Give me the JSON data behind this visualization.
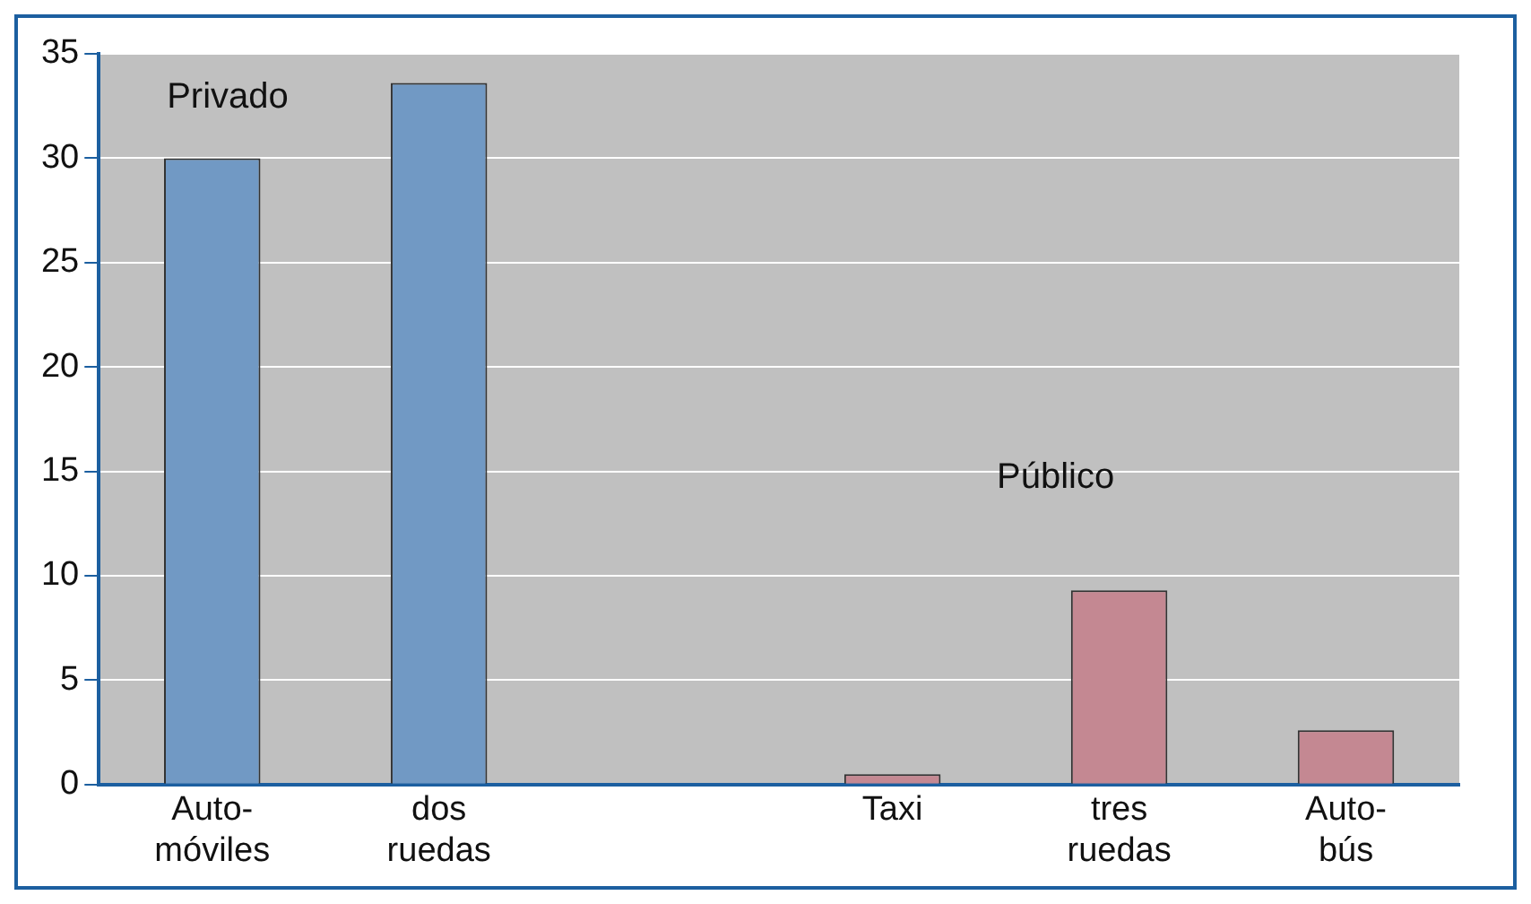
{
  "chart_data": {
    "type": "bar",
    "categories": [
      "Auto-\nmóviles",
      "dos\nruedas",
      null,
      "Taxi",
      "tres\nruedas",
      "Auto-\nbús"
    ],
    "values": [
      30,
      33.6,
      null,
      0.5,
      9.3,
      2.6
    ],
    "colors": [
      "#7199c4",
      "#7199c4",
      "#7199c4",
      "#c48892",
      "#c48892",
      "#c48892"
    ],
    "ylim": [
      0,
      35
    ],
    "yticks": [
      0,
      5,
      10,
      15,
      20,
      25,
      30,
      35
    ],
    "grid": "y",
    "annotations": [
      "Privado",
      "Público"
    ]
  }
}
